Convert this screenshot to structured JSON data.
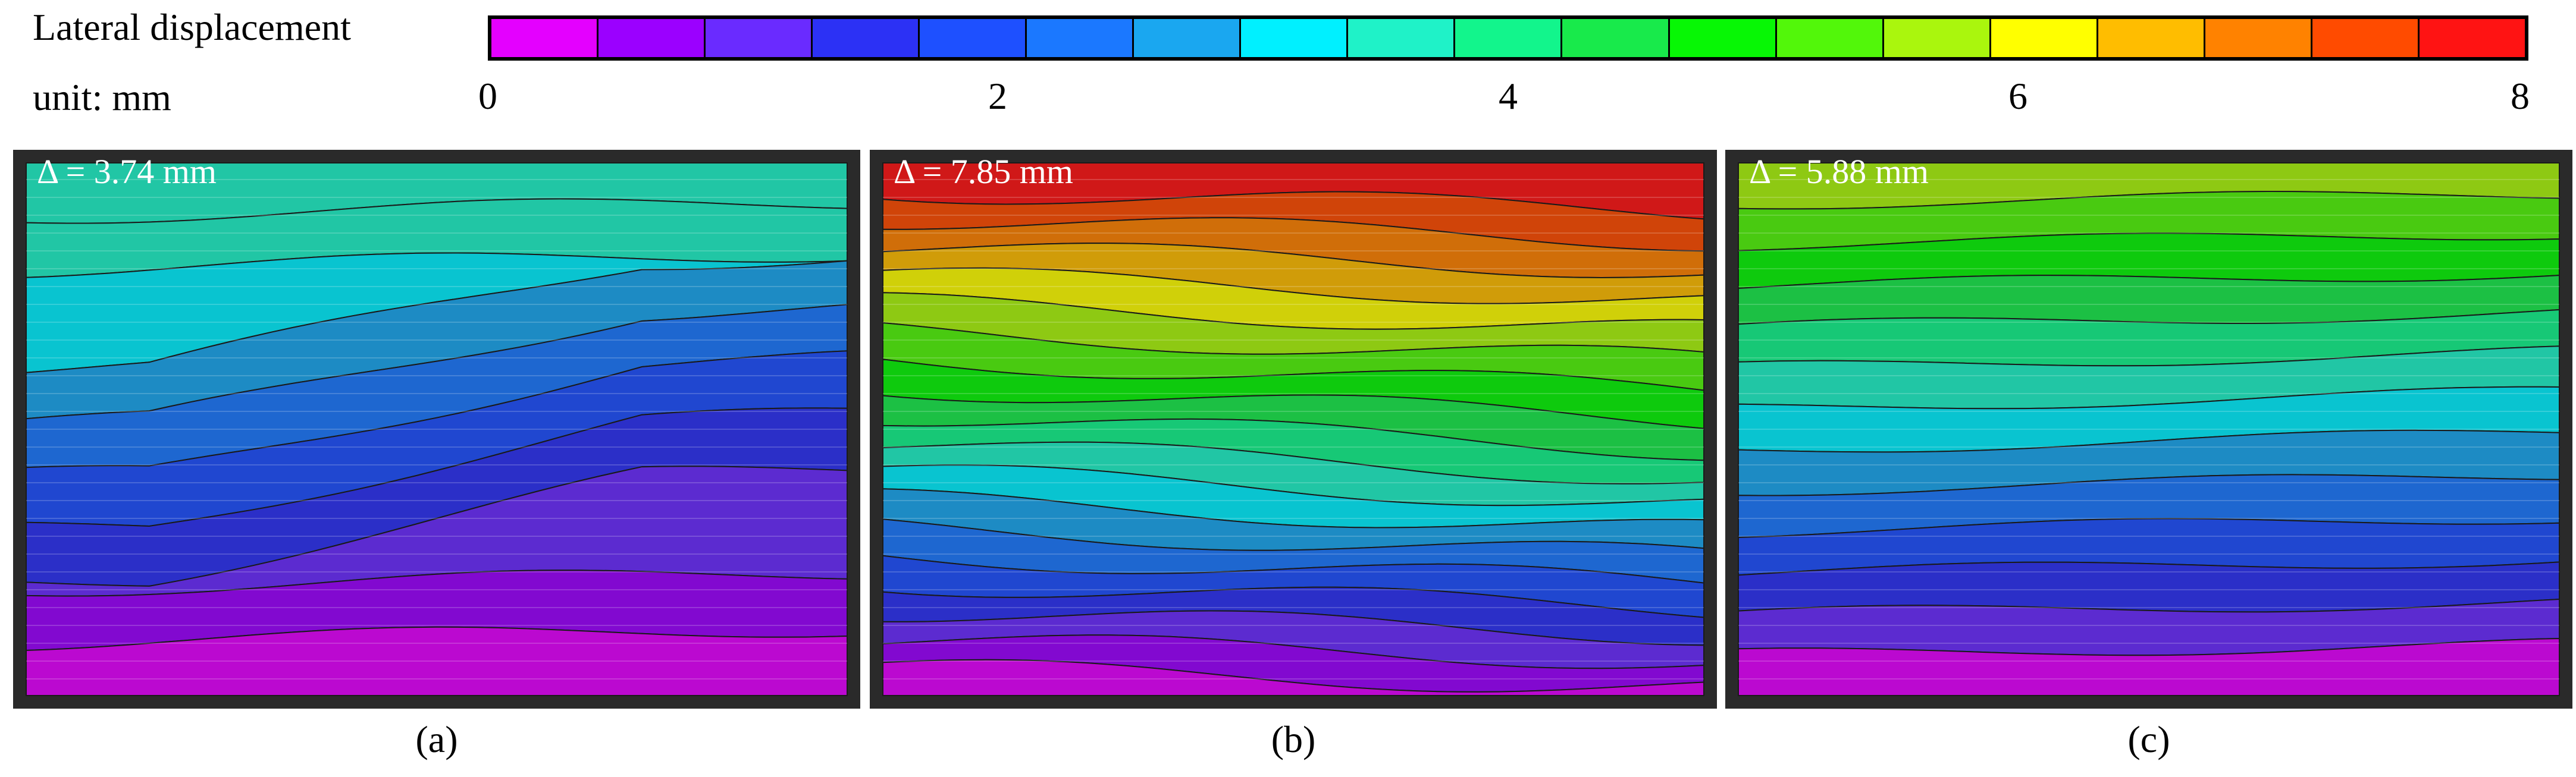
{
  "legend": {
    "title": "Lateral displacement",
    "unit": "unit: mm",
    "ticks": [
      "0",
      "2",
      "4",
      "6",
      "8"
    ],
    "min": 0,
    "max": 8,
    "colors": [
      "#e400ff",
      "#9b00ff",
      "#6a2bff",
      "#2c31f5",
      "#1e50ff",
      "#1b78ff",
      "#1aa7f0",
      "#00f0ff",
      "#1ff2c8",
      "#12f58c",
      "#18ea4b",
      "#07f705",
      "#52f70a",
      "#aaf60d",
      "#ffff00",
      "#ffbd00",
      "#ff8200",
      "#ff4b00",
      "#ff1313"
    ]
  },
  "panels": [
    {
      "id": "a",
      "delta": "Δ = 3.74 mm",
      "caption": "(a)"
    },
    {
      "id": "b",
      "delta": "Δ = 7.85 mm",
      "caption": "(b)"
    },
    {
      "id": "c",
      "delta": "Δ = 5.88 mm",
      "caption": "(c)"
    }
  ]
}
